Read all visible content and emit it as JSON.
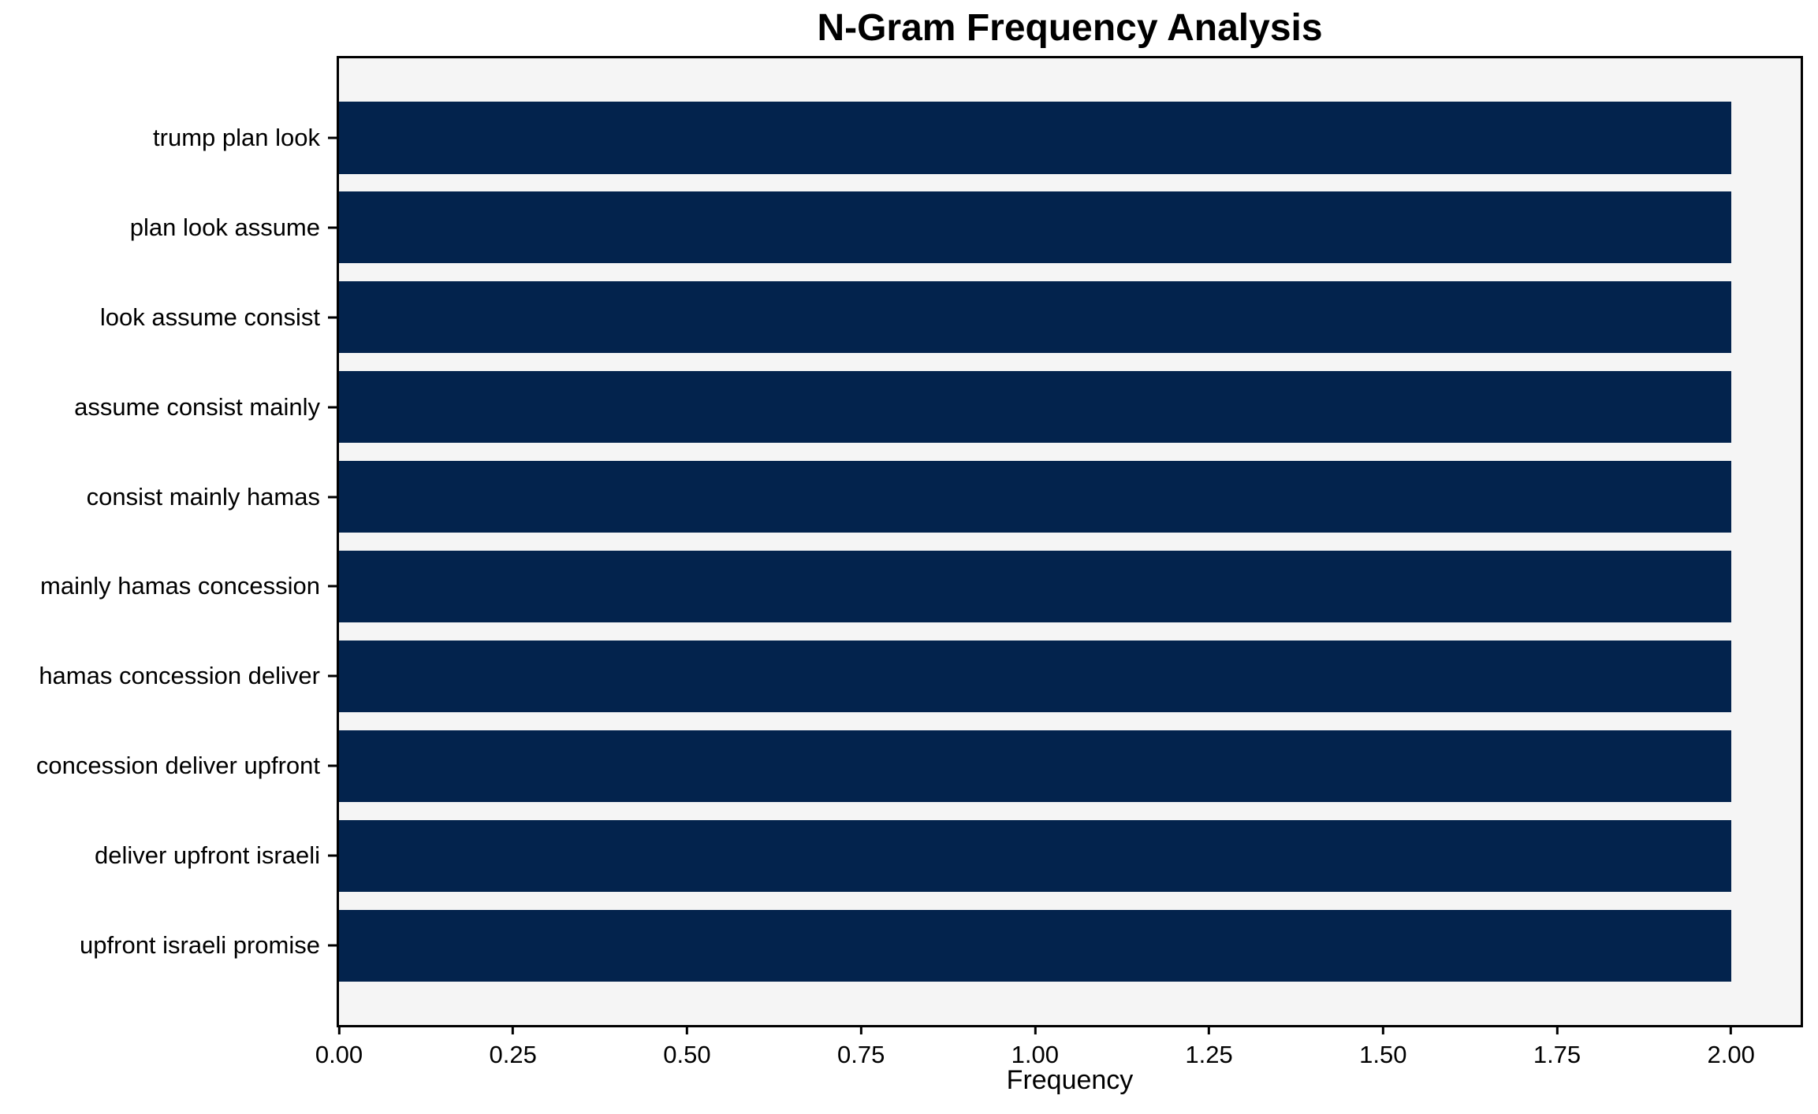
{
  "figure": {
    "title": "N-Gram Frequency Analysis",
    "xlabel": "Frequency"
  },
  "chart_data": {
    "type": "bar",
    "orientation": "horizontal",
    "title": "N-Gram Frequency Analysis",
    "xlabel": "Frequency",
    "ylabel": "",
    "categories": [
      "trump plan look",
      "plan look assume",
      "look assume consist",
      "assume consist mainly",
      "consist mainly hamas",
      "mainly hamas concession",
      "hamas concession deliver",
      "concession deliver upfront",
      "deliver upfront israeli",
      "upfront israeli promise"
    ],
    "values": [
      2,
      2,
      2,
      2,
      2,
      2,
      2,
      2,
      2,
      2
    ],
    "xlim": [
      0,
      2.1
    ],
    "xtick_values": [
      0,
      0.25,
      0.5,
      0.75,
      1.0,
      1.25,
      1.5,
      1.75,
      2.0
    ],
    "xtick_labels": [
      "0.00",
      "0.25",
      "0.50",
      "0.75",
      "1.00",
      "1.25",
      "1.50",
      "1.75",
      "2.00"
    ],
    "bar_height_fraction": 0.8,
    "bar_color": "#03234d",
    "plot_background": "#f5f5f5",
    "axis_color": "#000000",
    "grid": false,
    "legend": false
  }
}
